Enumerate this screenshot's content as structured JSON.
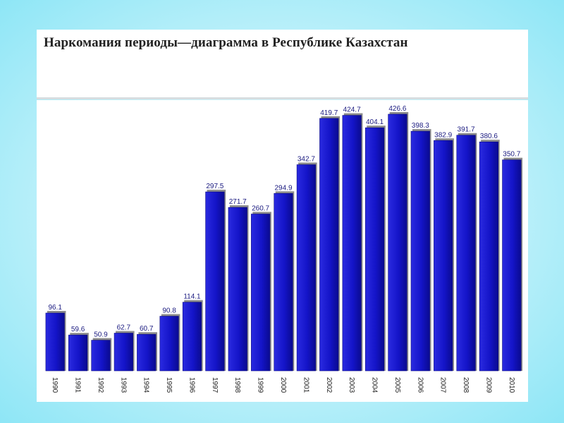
{
  "slide": {
    "title": "Наркомания периоды—диаграмма  в Республике Казахстан"
  },
  "colors": {
    "bar": "#1414c8",
    "bar_dark": "#0a0a80",
    "bar_shadow": "#8c8c8c",
    "label": "#1a1a80"
  },
  "chart_data": {
    "type": "bar",
    "title": "",
    "xlabel": "",
    "ylabel": "",
    "categories": [
      "1990",
      "1991",
      "1992",
      "1993",
      "1994",
      "1995",
      "1996",
      "1997",
      "1998",
      "1999",
      "2000",
      "2001",
      "2002",
      "2003",
      "2004",
      "2005",
      "2006",
      "2007",
      "2008",
      "2009",
      "2010"
    ],
    "values": [
      96.1,
      59.6,
      50.9,
      62.7,
      60.7,
      90.8,
      114.1,
      297.5,
      271.7,
      260.7,
      294.9,
      342.7,
      419.7,
      424.7,
      404.1,
      426.6,
      398.3,
      382.9,
      391.7,
      380.6,
      350.7
    ],
    "value_labels": [
      "96.1",
      "59.6",
      "50.9",
      "62.7",
      "60.7",
      "90.8",
      "114.1",
      "297.5",
      "271.7",
      "260.7",
      "294.9",
      "342.7",
      "419.7",
      "424.7",
      "404.1",
      "426.6",
      "398.3",
      "382.9",
      "391.7",
      "380.6",
      "350.7"
    ],
    "ylim": [
      0,
      450
    ],
    "grid": false,
    "legend": "none"
  }
}
